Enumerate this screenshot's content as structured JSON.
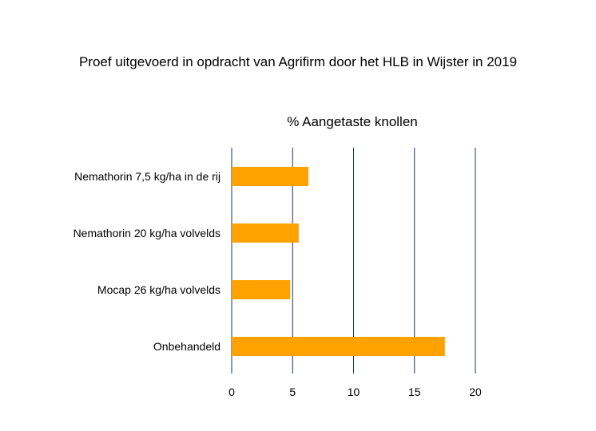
{
  "chart_data": {
    "type": "bar",
    "orientation": "horizontal",
    "title": "Proef uitgevoerd in opdracht van Agrifirm door het HLB in Wijster in 2019",
    "subtitle": "% Aangetaste knollen",
    "categories": [
      "Nemathorin 7,5 kg/ha in de rij",
      "Nemathorin 20 kg/ha volvelds",
      "Mocap 26 kg/ha volvelds",
      "Onbehandeld"
    ],
    "values": [
      6.3,
      5.5,
      4.8,
      17.5
    ],
    "xlim": [
      0,
      20
    ],
    "x_ticks": [
      "0",
      "5",
      "10",
      "15",
      "20"
    ],
    "xlabel": "",
    "ylabel": "",
    "grid": "vertical",
    "bar_color": "#FFA200",
    "grid_color": "#1F3550"
  }
}
